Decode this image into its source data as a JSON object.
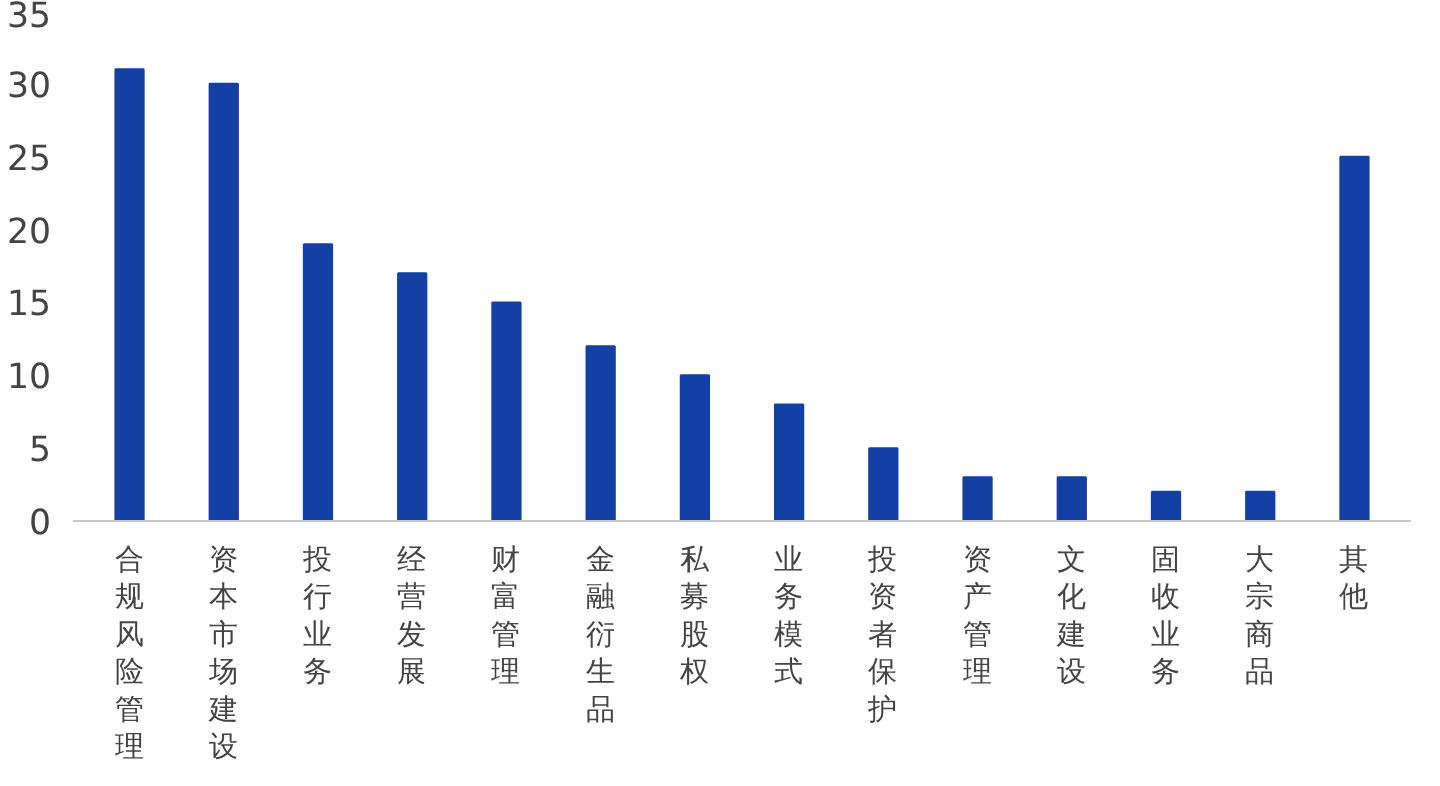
{
  "chart_data": {
    "type": "bar",
    "categories": [
      "合规风险管理",
      "资本市场建设",
      "投行业务",
      "经营发展",
      "财富管理",
      "金融衍生品",
      "私募股权",
      "业务模式",
      "投资者保护",
      "资产管理",
      "文化建设",
      "固收业务",
      "大宗商品",
      "其他"
    ],
    "values": [
      31,
      30,
      19,
      17,
      15,
      12,
      10,
      8,
      5,
      3,
      3,
      2,
      2,
      25
    ],
    "color": "#1440a6",
    "ylim": [
      0,
      35
    ],
    "yticks": [
      0,
      5,
      10,
      15,
      20,
      25,
      30,
      35
    ],
    "grid": false
  }
}
